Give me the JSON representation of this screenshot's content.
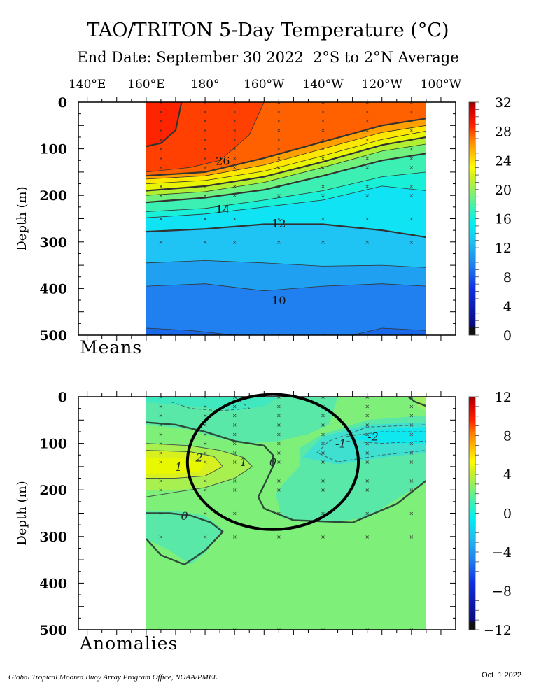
{
  "chart_data": {
    "type": "heatmap",
    "title": "TAO/TRITON 5-Day Temperature (°C)",
    "subtitle": "End Date: September 30 2022  2°S to 2°N Average",
    "x_tick_labels": [
      "140°E",
      "160°E",
      "180°",
      "160°W",
      "140°W",
      "120°W",
      "100°W"
    ],
    "x_tick_lon_east": [
      140,
      160,
      180,
      200,
      220,
      240,
      260
    ],
    "xlim_lon_east": [
      137,
      265
    ],
    "data_lon_range_east": [
      160,
      255
    ],
    "buoy_lon_east": [
      165,
      180,
      190,
      205,
      220,
      235,
      250
    ],
    "footer_left": "Global Tropical Moored Buoy Array Program Office, NOAA/PMEL",
    "footer_right": "Oct  1 2022",
    "panels": [
      {
        "name": "Means",
        "label": "Means",
        "ylabel": "Depth (m)",
        "ylim": [
          0,
          500
        ],
        "y_tick_labels": [
          "0",
          "100",
          "200",
          "300",
          "400",
          "500"
        ],
        "y_ticks": [
          0,
          100,
          200,
          300,
          400,
          500
        ],
        "colorbar": {
          "range": [
            0,
            32
          ],
          "ticks": [
            0,
            4,
            8,
            12,
            16,
            20,
            24,
            28,
            32
          ],
          "tick_labels": [
            "0",
            "4",
            "8",
            "12",
            "16",
            "20",
            "24",
            "28",
            "32"
          ]
        },
        "contour_labels": [
          {
            "text": "26",
            "lon": 186,
            "depth": 125
          },
          {
            "text": "14",
            "lon": 186,
            "depth": 230
          },
          {
            "text": "12",
            "lon": 205,
            "depth": 260
          },
          {
            "text": "10",
            "lon": 205,
            "depth": 425
          }
        ],
        "isotherms": [
          {
            "value": 28,
            "depth_by_lon": [
              [
                160,
                95
              ],
              [
                165,
                88
              ],
              [
                170,
                60
              ],
              [
                172,
                0
              ]
            ]
          },
          {
            "value": 27,
            "depth_by_lon": [
              [
                160,
                150
              ],
              [
                175,
                140
              ],
              [
                185,
                125
              ],
              [
                195,
                70
              ],
              [
                200,
                0
              ]
            ]
          },
          {
            "value": 26,
            "depth_by_lon": [
              [
                160,
                158
              ],
              [
                180,
                150
              ],
              [
                200,
                120
              ],
              [
                220,
                85
              ],
              [
                240,
                50
              ],
              [
                255,
                35
              ]
            ]
          },
          {
            "value": 24,
            "depth_by_lon": [
              [
                160,
                165
              ],
              [
                180,
                158
              ],
              [
                200,
                135
              ],
              [
                220,
                100
              ],
              [
                240,
                65
              ],
              [
                255,
                50
              ]
            ]
          },
          {
            "value": 22,
            "depth_by_lon": [
              [
                160,
                175
              ],
              [
                180,
                168
              ],
              [
                200,
                148
              ],
              [
                220,
                115
              ],
              [
                240,
                80
              ],
              [
                255,
                62
              ]
            ]
          },
          {
            "value": 20,
            "depth_by_lon": [
              [
                160,
                190
              ],
              [
                180,
                180
              ],
              [
                200,
                160
              ],
              [
                220,
                128
              ],
              [
                240,
                92
              ],
              [
                255,
                75
              ]
            ]
          },
          {
            "value": 18,
            "depth_by_lon": [
              [
                160,
                200
              ],
              [
                180,
                192
              ],
              [
                200,
                172
              ],
              [
                220,
                140
              ],
              [
                240,
                105
              ],
              [
                255,
                90
              ]
            ]
          },
          {
            "value": 16,
            "depth_by_lon": [
              [
                160,
                215
              ],
              [
                180,
                205
              ],
              [
                200,
                188
              ],
              [
                220,
                158
              ],
              [
                240,
                125
              ],
              [
                255,
                110
              ]
            ]
          },
          {
            "value": 14,
            "depth_by_lon": [
              [
                160,
                235
              ],
              [
                180,
                228
              ],
              [
                200,
                210
              ],
              [
                220,
                190
              ],
              [
                240,
                160
              ],
              [
                255,
                150
              ]
            ]
          },
          {
            "value": 13,
            "depth_by_lon": [
              [
                160,
                248
              ],
              [
                180,
                240
              ],
              [
                200,
                225
              ],
              [
                220,
                210
              ],
              [
                240,
                180
              ],
              [
                255,
                190
              ]
            ]
          },
          {
            "value": 12,
            "depth_by_lon": [
              [
                160,
                278
              ],
              [
                180,
                272
              ],
              [
                200,
                262
              ],
              [
                220,
                262
              ],
              [
                240,
                275
              ],
              [
                255,
                290
              ]
            ]
          },
          {
            "value": 11,
            "depth_by_lon": [
              [
                160,
                345
              ],
              [
                180,
                340
              ],
              [
                200,
                345
              ],
              [
                220,
                352
              ],
              [
                240,
                350
              ],
              [
                255,
                355
              ]
            ]
          },
          {
            "value": 10,
            "depth_by_lon": [
              [
                160,
                395
              ],
              [
                180,
                390
              ],
              [
                200,
                405
              ],
              [
                220,
                395
              ],
              [
                240,
                390
              ],
              [
                255,
                395
              ]
            ]
          },
          {
            "value": 9,
            "depth_by_lon": [
              [
                160,
                485
              ],
              [
                175,
                490
              ],
              [
                190,
                500
              ],
              [
                230,
                500
              ],
              [
                240,
                485
              ],
              [
                255,
                490
              ]
            ]
          }
        ]
      },
      {
        "name": "Anomalies",
        "label": "Anomalies",
        "ylabel": "Depth (m)",
        "ylim": [
          0,
          500
        ],
        "y_tick_labels": [
          "0",
          "100",
          "200",
          "300",
          "400",
          "500"
        ],
        "y_ticks": [
          0,
          100,
          200,
          300,
          400,
          500
        ],
        "colorbar": {
          "range": [
            -12,
            12
          ],
          "ticks": [
            -12,
            -8,
            -4,
            0,
            4,
            8,
            12
          ],
          "tick_labels": [
            "−12",
            "−8",
            "−4",
            "0",
            "4",
            "8",
            "12"
          ]
        },
        "contour_labels": [
          {
            "text": "2",
            "lon": 178,
            "depth": 130
          },
          {
            "text": "1",
            "lon": 171,
            "depth": 150
          },
          {
            "text": "1",
            "lon": 193,
            "depth": 140
          },
          {
            "text": "0",
            "lon": 203,
            "depth": 140
          },
          {
            "text": "0",
            "lon": 173,
            "depth": 255
          },
          {
            "text": "-1",
            "lon": 226,
            "depth": 100
          },
          {
            "text": "-2",
            "lon": 237,
            "depth": 85
          }
        ],
        "features": [
          {
            "anomaly": 2,
            "description": "warm core centered near 165E-180 at 130-170 m"
          },
          {
            "anomaly": -2,
            "description": "cool core near 125W-105W at 70-110 m"
          },
          {
            "anomaly": -1,
            "description": "cool anomaly near surface 170W-160W"
          },
          {
            "anomaly": -1,
            "description": "cool anomaly near 160E-180 at 260-350 m"
          }
        ],
        "annotation": {
          "shape": "ellipse",
          "center_lon": 203,
          "center_depth": 140,
          "lon_radius": 29,
          "depth_radius": 145
        }
      }
    ]
  }
}
